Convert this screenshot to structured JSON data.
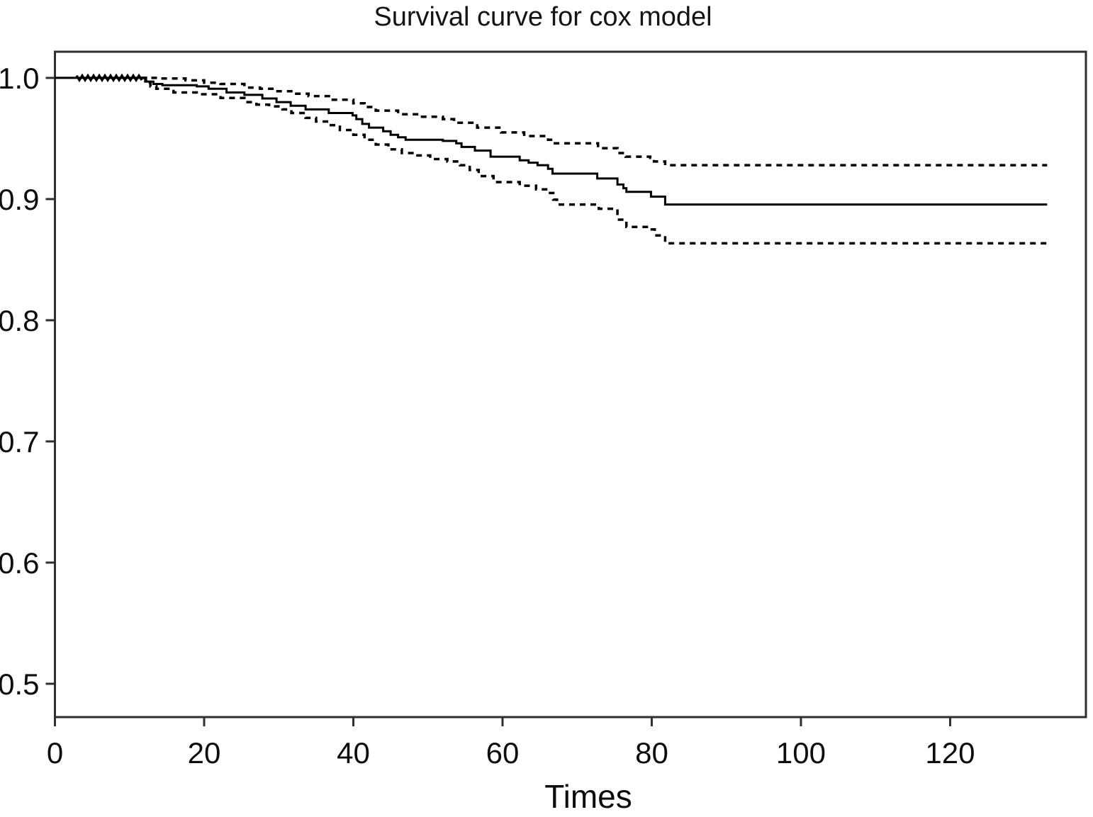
{
  "page": {
    "background": "#ffffff"
  },
  "chart_data": {
    "type": "line",
    "subtype": "step-survival",
    "title": "Survival curve for cox model",
    "xlabel": "Times",
    "ylabel": "",
    "xlim": [
      0,
      138.2
    ],
    "ylim": [
      0.4725,
      1.0216
    ],
    "x_ticks": [
      0,
      20,
      40,
      60,
      80,
      100,
      120
    ],
    "y_ticks": [
      "0.5",
      "0.6",
      "0.7",
      "0.8",
      "0.9",
      "1.0"
    ],
    "grid": false,
    "frame": "full-box",
    "legend": "none",
    "colors": {
      "curve": "#000000",
      "frame": "#2f2f2f",
      "text": "#111111",
      "background": "#ffffff"
    },
    "series": [
      {
        "name": "survival-estimate",
        "style": "solid",
        "points": [
          [
            0,
            1.0
          ],
          [
            12.1,
            0.997
          ],
          [
            13.2,
            0.995
          ],
          [
            14.4,
            0.994
          ],
          [
            19,
            0.993
          ],
          [
            20.6,
            0.991
          ],
          [
            23,
            0.988
          ],
          [
            25.4,
            0.986
          ],
          [
            27.8,
            0.983
          ],
          [
            29.7,
            0.98
          ],
          [
            31.6,
            0.977
          ],
          [
            33.6,
            0.974
          ],
          [
            36.7,
            0.971
          ],
          [
            39.9,
            0.969
          ],
          [
            40.4,
            0.966
          ],
          [
            41.2,
            0.962
          ],
          [
            42.1,
            0.959
          ],
          [
            44,
            0.956
          ],
          [
            45,
            0.953
          ],
          [
            46,
            0.951
          ],
          [
            47,
            0.949
          ],
          [
            52,
            0.948
          ],
          [
            53.8,
            0.946
          ],
          [
            54.5,
            0.943
          ],
          [
            56.3,
            0.94
          ],
          [
            58.4,
            0.935
          ],
          [
            62.3,
            0.932
          ],
          [
            63.5,
            0.93
          ],
          [
            64.7,
            0.928
          ],
          [
            66.1,
            0.925
          ],
          [
            66.7,
            0.921
          ],
          [
            72.7,
            0.917
          ],
          [
            75.4,
            0.912
          ],
          [
            76.2,
            0.909
          ],
          [
            76.6,
            0.906
          ],
          [
            79.9,
            0.902
          ],
          [
            81.8,
            0.8955
          ],
          [
            133,
            0.8955
          ]
        ]
      },
      {
        "name": "upper-95-ci",
        "style": "dashed",
        "points": [
          [
            11.5,
            1.0
          ],
          [
            14,
            0.9995
          ],
          [
            17.5,
            0.998
          ],
          [
            20,
            0.996
          ],
          [
            22.2,
            0.995
          ],
          [
            25.4,
            0.992
          ],
          [
            27.5,
            0.991
          ],
          [
            29.5,
            0.989
          ],
          [
            32,
            0.987
          ],
          [
            34,
            0.985
          ],
          [
            37,
            0.982
          ],
          [
            40,
            0.979
          ],
          [
            41.5,
            0.976
          ],
          [
            43,
            0.973
          ],
          [
            46,
            0.97
          ],
          [
            49,
            0.968
          ],
          [
            52,
            0.966
          ],
          [
            53.5,
            0.963
          ],
          [
            56.6,
            0.959
          ],
          [
            59.8,
            0.955
          ],
          [
            62.9,
            0.952
          ],
          [
            66.1,
            0.949
          ],
          [
            66.8,
            0.946
          ],
          [
            72.8,
            0.942
          ],
          [
            75.4,
            0.938
          ],
          [
            76.5,
            0.935
          ],
          [
            79.8,
            0.934
          ],
          [
            80.3,
            0.931
          ],
          [
            81.8,
            0.928
          ],
          [
            133,
            0.928
          ]
        ]
      },
      {
        "name": "lower-95-ci",
        "style": "dashed",
        "points": [
          [
            11.8,
            1.0
          ],
          [
            12.2,
            0.996
          ],
          [
            12.8,
            0.993
          ],
          [
            13.6,
            0.991
          ],
          [
            15.9,
            0.988
          ],
          [
            19,
            0.9865
          ],
          [
            22.2,
            0.9835
          ],
          [
            25.4,
            0.98
          ],
          [
            27,
            0.978
          ],
          [
            28.7,
            0.9765
          ],
          [
            30.5,
            0.974
          ],
          [
            31.7,
            0.971
          ],
          [
            33.6,
            0.967
          ],
          [
            35,
            0.964
          ],
          [
            36.8,
            0.961
          ],
          [
            38.2,
            0.957
          ],
          [
            40,
            0.953
          ],
          [
            41.5,
            0.949
          ],
          [
            43,
            0.945
          ],
          [
            44.7,
            0.941
          ],
          [
            46.5,
            0.938
          ],
          [
            48.2,
            0.936
          ],
          [
            50.3,
            0.933
          ],
          [
            52.6,
            0.931
          ],
          [
            54.3,
            0.928
          ],
          [
            55.6,
            0.924
          ],
          [
            56.8,
            0.919
          ],
          [
            58.8,
            0.914
          ],
          [
            62.3,
            0.911
          ],
          [
            64.5,
            0.908
          ],
          [
            66.1,
            0.905
          ],
          [
            66.8,
            0.8995
          ],
          [
            67.3,
            0.8955
          ],
          [
            72.9,
            0.892
          ],
          [
            75.4,
            0.883
          ],
          [
            76.6,
            0.877
          ],
          [
            80,
            0.875
          ],
          [
            80.4,
            0.87
          ],
          [
            81.8,
            0.8635
          ],
          [
            133,
            0.8635
          ]
        ]
      }
    ],
    "censor_marks": {
      "S": 1.0,
      "t_start": 2.9,
      "t_end": 11.8
    }
  }
}
